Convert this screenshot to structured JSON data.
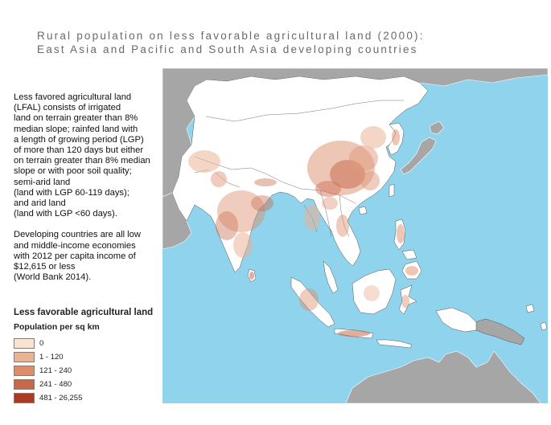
{
  "title": {
    "line1": "Rural population on less favorable agricultural land (2000):",
    "line2": "East Asia and Pacific and South Asia developing countries"
  },
  "description": {
    "para1": [
      "Less favored agricultural land",
      "(LFAL) consists of irrigated",
      "land on terrain greater than 8%",
      "median slope; rainfed land with",
      "a length of growing period (LGP)",
      "of more than 120 days but either",
      "on terrain greater than 8% median",
      "slope or with poor soil quality;",
      "semi-arid land",
      "(land with LGP 60-119 days);",
      "and arid land",
      "(land with LGP <60 days)."
    ],
    "para2": [
      "Developing countries are all low",
      "and middle-income economies",
      "with 2012 per capita income of",
      "$12,615 or less",
      "(World Bank 2014)."
    ]
  },
  "legend": {
    "title": "Less favorable agricultural land",
    "subtitle": "Population per sq km",
    "items": [
      {
        "label": "0",
        "color": "#fbe3d2"
      },
      {
        "label": "1 - 120",
        "color": "#eab394"
      },
      {
        "label": "121 - 240",
        "color": "#dc8d6c"
      },
      {
        "label": "241 - 480",
        "color": "#c8684a"
      },
      {
        "label": "481 - 26,255",
        "color": "#a83a26"
      }
    ]
  },
  "map": {
    "ocean_color": "#8fd3ec",
    "land_developing_color": "#ffffff",
    "land_other_color": "#a6a6a6"
  }
}
